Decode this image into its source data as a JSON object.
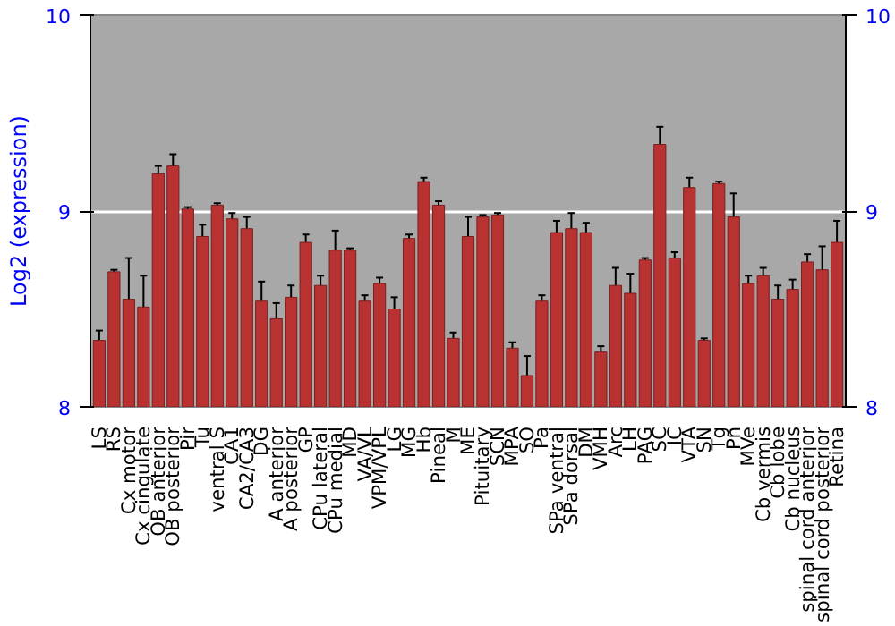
{
  "chart_data": {
    "type": "bar",
    "ylabel": "Log2 (expression)",
    "categories": [
      "LS",
      "RS",
      "Cx motor",
      "Cx cingulate",
      "OB anterior",
      "OB posterior",
      "Pir",
      "Tu",
      "ventral S",
      "CA1",
      "CA2/CA3",
      "DG",
      "A anterior",
      "A posterior",
      "GP",
      "CPu lateral",
      "CPu medial",
      "MD",
      "VA/VL",
      "VPM/VPL",
      "LG",
      "MG",
      "Hb",
      "Pineal",
      "M",
      "ME",
      "Pituitary",
      "SCN",
      "MPA",
      "SO",
      "Pa",
      "SPa ventral",
      "SPa dorsal",
      "DM",
      "VMH",
      "Arc",
      "LH",
      "PAG",
      "SC",
      "IC",
      "VTA",
      "SN",
      "Tg",
      "Pn",
      "MVe",
      "Cb vermis",
      "Cb lobe",
      "Cb nucleus",
      "spinal cord anterior",
      "spinal cord posterior",
      "Retina"
    ],
    "values": [
      8.34,
      8.69,
      8.55,
      8.51,
      9.19,
      9.23,
      9.01,
      8.87,
      9.03,
      8.96,
      8.91,
      8.54,
      8.45,
      8.56,
      8.84,
      8.62,
      8.8,
      8.8,
      8.54,
      8.63,
      8.5,
      8.86,
      9.15,
      9.03,
      8.35,
      8.87,
      8.97,
      8.98,
      8.3,
      8.16,
      8.54,
      8.89,
      8.91,
      8.89,
      8.28,
      8.62,
      8.58,
      8.75,
      9.34,
      8.76,
      9.12,
      8.34,
      9.14,
      8.97,
      8.63,
      8.67,
      8.55,
      8.6,
      8.74,
      8.7,
      8.84
    ],
    "errors": [
      0.05,
      0.01,
      0.21,
      0.16,
      0.04,
      0.06,
      0.01,
      0.06,
      0.01,
      0.03,
      0.06,
      0.1,
      0.08,
      0.06,
      0.04,
      0.05,
      0.1,
      0.01,
      0.03,
      0.03,
      0.06,
      0.02,
      0.02,
      0.02,
      0.03,
      0.1,
      0.01,
      0.01,
      0.03,
      0.1,
      0.03,
      0.06,
      0.08,
      0.05,
      0.03,
      0.09,
      0.1,
      0.01,
      0.09,
      0.03,
      0.05,
      0.01,
      0.01,
      0.12,
      0.04,
      0.04,
      0.07,
      0.05,
      0.04,
      0.12,
      0.11
    ],
    "color": "#b83232",
    "ylim": [
      8,
      10
    ],
    "yticks": [
      8,
      9,
      10
    ],
    "y2lim": [
      8,
      10
    ],
    "y2ticks": [
      8,
      9,
      10
    ],
    "grid": "y"
  }
}
